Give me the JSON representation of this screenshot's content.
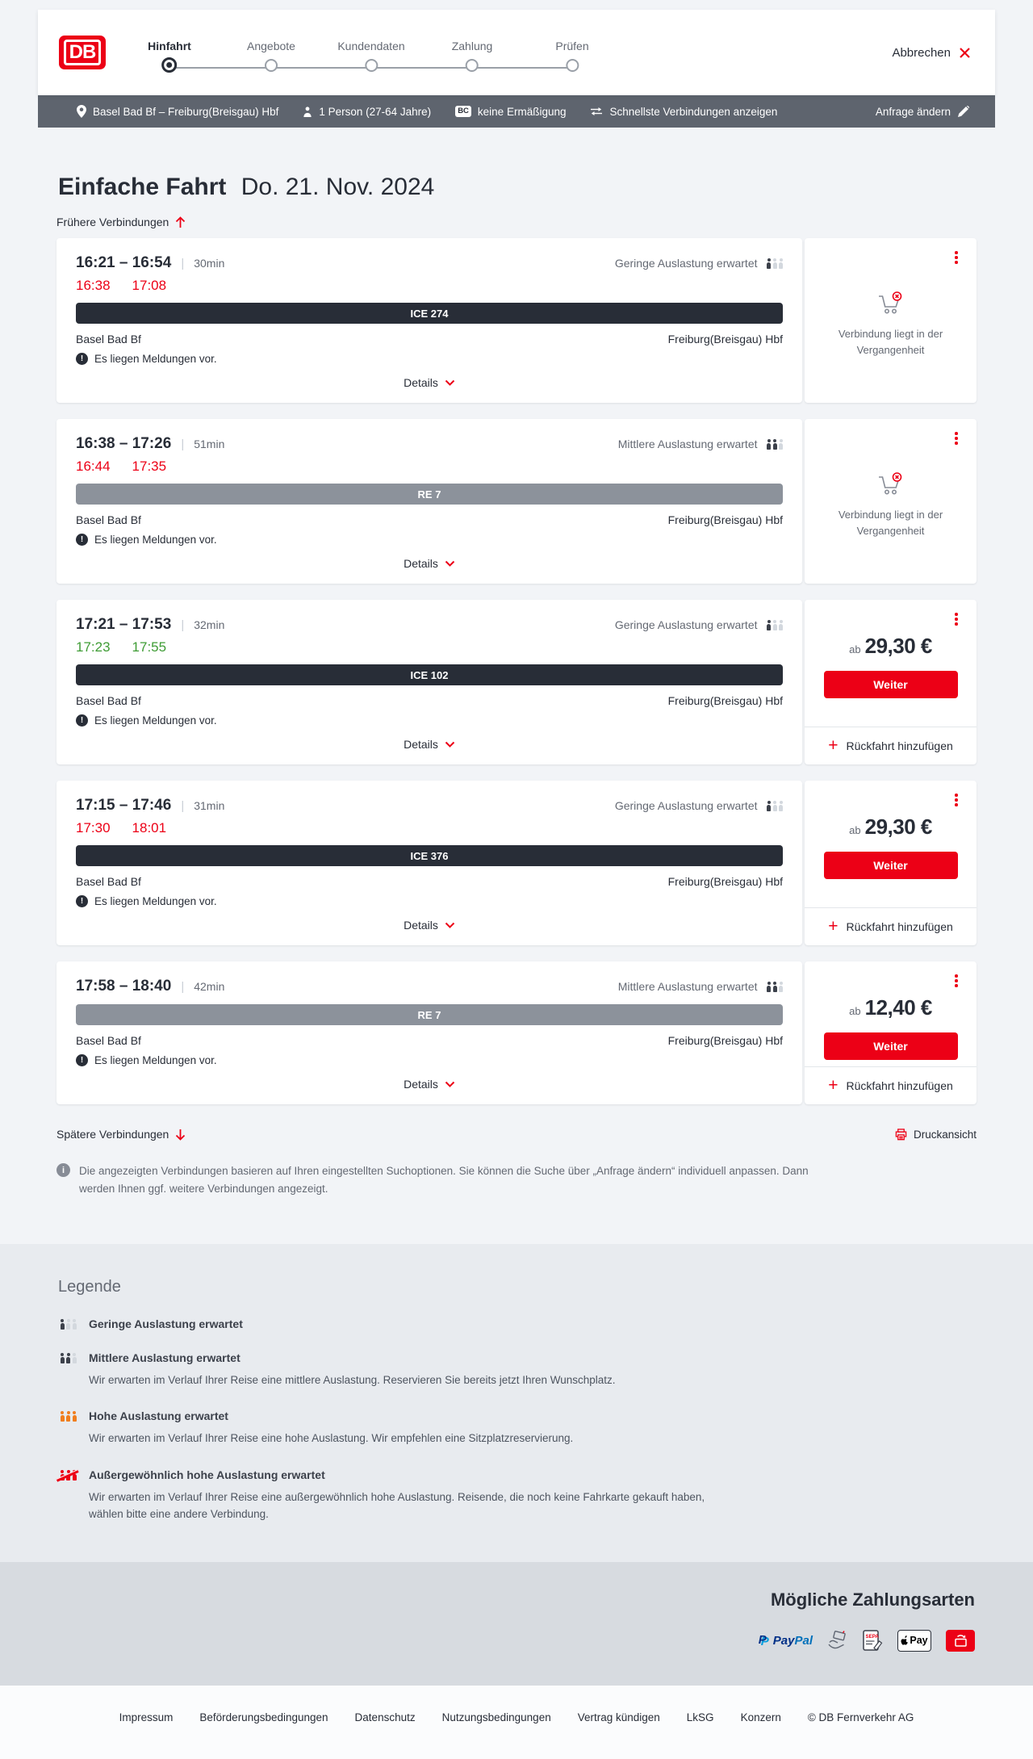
{
  "header": {
    "logo_text": "DB",
    "steps": [
      {
        "label": "Hinfahrt",
        "active": true
      },
      {
        "label": "Angebote",
        "active": false
      },
      {
        "label": "Kundendaten",
        "active": false
      },
      {
        "label": "Zahlung",
        "active": false
      },
      {
        "label": "Prüfen",
        "active": false
      }
    ],
    "cancel_label": "Abbrechen"
  },
  "summary": {
    "route": "Basel Bad Bf – Freiburg(Breisgau) Hbf",
    "passengers": "1 Person (27-64 Jahre)",
    "badge": "BC",
    "discount": "keine Ermäßigung",
    "speed_link": "Schnellste Verbindungen anzeigen",
    "edit_label": "Anfrage ändern"
  },
  "page": {
    "title": "Einfache Fahrt",
    "date": "Do. 21. Nov. 2024",
    "earlier_label": "Frühere Verbindungen",
    "later_label": "Spätere Verbindungen",
    "print_label": "Druckansicht",
    "info_text": "Die angezeigten Verbindungen basieren auf Ihren eingestellten Suchoptionen. Sie können die Suche über „Anfrage ändern“ individuell anpassen. Dann werden Ihnen ggf. weitere Verbindungen angezeigt."
  },
  "connections": [
    {
      "times": "16:21 – 16:54",
      "duration": "30min",
      "delay": {
        "depart": "16:38",
        "arrive": "17:08",
        "status": "late"
      },
      "train": "ICE 274",
      "train_style": "ice",
      "occupancy": {
        "label": "Geringe Auslastung erwartet",
        "level": 1
      },
      "from": "Basel Bad Bf",
      "to": "Freiburg(Breisgau) Hbf",
      "notice": "Es liegen Meldungen vor.",
      "details_label": "Details",
      "panel": {
        "type": "past",
        "message": "Verbindung liegt in der Vergangenheit"
      }
    },
    {
      "times": "16:38 – 17:26",
      "duration": "51min",
      "delay": {
        "depart": "16:44",
        "arrive": "17:35",
        "status": "late"
      },
      "train": "RE 7",
      "train_style": "re",
      "occupancy": {
        "label": "Mittlere Auslastung erwartet",
        "level": 2
      },
      "from": "Basel Bad Bf",
      "to": "Freiburg(Breisgau) Hbf",
      "notice": "Es liegen Meldungen vor.",
      "details_label": "Details",
      "panel": {
        "type": "past",
        "message": "Verbindung liegt in der Vergangenheit"
      }
    },
    {
      "times": "17:21 – 17:53",
      "duration": "32min",
      "delay": {
        "depart": "17:23",
        "arrive": "17:55",
        "status": "ontime"
      },
      "train": "ICE 102",
      "train_style": "ice",
      "occupancy": {
        "label": "Geringe Auslastung erwartet",
        "level": 1
      },
      "from": "Basel Bad Bf",
      "to": "Freiburg(Breisgau) Hbf",
      "notice": "Es liegen Meldungen vor.",
      "details_label": "Details",
      "panel": {
        "type": "offer",
        "prefix": "ab",
        "price": "29,30 €",
        "cta": "Weiter",
        "return_label": "Rückfahrt hinzufügen"
      }
    },
    {
      "times": "17:15 – 17:46",
      "duration": "31min",
      "delay": {
        "depart": "17:30",
        "arrive": "18:01",
        "status": "late"
      },
      "train": "ICE 376",
      "train_style": "ice",
      "occupancy": {
        "label": "Geringe Auslastung erwartet",
        "level": 1
      },
      "from": "Basel Bad Bf",
      "to": "Freiburg(Breisgau) Hbf",
      "notice": "Es liegen Meldungen vor.",
      "details_label": "Details",
      "panel": {
        "type": "offer",
        "prefix": "ab",
        "price": "29,30 €",
        "cta": "Weiter",
        "return_label": "Rückfahrt hinzufügen"
      }
    },
    {
      "times": "17:58 – 18:40",
      "duration": "42min",
      "delay": null,
      "train": "RE 7",
      "train_style": "re",
      "occupancy": {
        "label": "Mittlere Auslastung erwartet",
        "level": 2
      },
      "from": "Basel Bad Bf",
      "to": "Freiburg(Breisgau) Hbf",
      "notice": "Es liegen Meldungen vor.",
      "details_label": "Details",
      "panel": {
        "type": "offer",
        "prefix": "ab",
        "price": "12,40 €",
        "cta": "Weiter",
        "return_label": "Rückfahrt hinzufügen"
      }
    }
  ],
  "legend": {
    "title": "Legende",
    "items": [
      {
        "label": "Geringe Auslastung erwartet",
        "level": 1,
        "description": ""
      },
      {
        "label": "Mittlere Auslastung erwartet",
        "level": 2,
        "description": "Wir erwarten im Verlauf Ihrer Reise eine mittlere Auslastung. Reservieren Sie bereits jetzt Ihren Wunschplatz."
      },
      {
        "label": "Hohe Auslastung erwartet",
        "level": 3,
        "description": "Wir erwarten im Verlauf Ihrer Reise eine hohe Auslastung. Wir empfehlen eine Sitzplatzreservierung."
      },
      {
        "label": "Außergewöhnlich hohe Auslastung erwartet",
        "level": 4,
        "description": "Wir erwarten im Verlauf Ihrer Reise eine außergewöhnlich hohe Auslastung. Reisende, die noch keine Fahrkarte gekauft haben, wählen bitte eine andere Verbindung."
      }
    ]
  },
  "payment": {
    "title": "Mögliche Zahlungsarten",
    "paypal_word1": "Pay",
    "paypal_word2": "Pal",
    "applepay_label": "Pay",
    "methods": [
      "paypal",
      "kreditkarte",
      "sepa-lastschrift",
      "apple-pay",
      "db-gutschein"
    ]
  },
  "footer": {
    "links": [
      "Impressum",
      "Beförderungsbedingungen",
      "Datenschutz",
      "Nutzungsbedingungen",
      "Vertrag kündigen",
      "LkSG",
      "Konzern"
    ],
    "copyright": "© DB Fernverkehr AG"
  },
  "colors": {
    "brand_red": "#ec0016",
    "dark": "#282d37",
    "bar_gray": "#5e646e",
    "delay_red": "#ec0016",
    "ontime_green": "#3f9c35",
    "occupancy_orange": "#f07e1e",
    "re_bar": "#8c929b"
  }
}
